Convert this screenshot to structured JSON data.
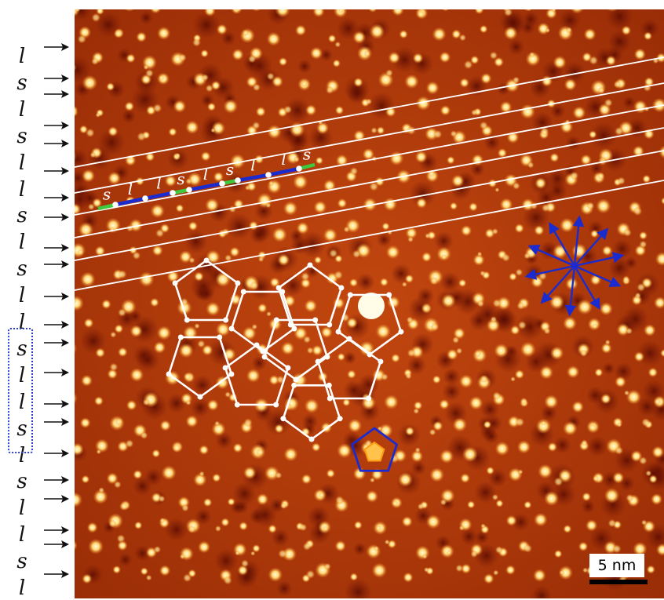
{
  "sequence_column": {
    "letters": [
      "l",
      "s",
      "l",
      "s",
      "l",
      "l",
      "s",
      "l",
      "s",
      "l",
      "l",
      "s",
      "l",
      "l",
      "s",
      "l",
      "s",
      "l",
      "l",
      "s",
      "l"
    ],
    "highlighted_group": [
      "s",
      "l",
      "l",
      "s",
      "l"
    ]
  },
  "image_annotations": {
    "fibonacci_line_labels": [
      "s",
      "l",
      "l",
      "s",
      "l",
      "s",
      "l",
      "l",
      "s"
    ],
    "segment_colors": {
      "s": "#3ec93e",
      "l": "#1a2bd0"
    }
  },
  "scale_bar": {
    "label": "5 nm"
  },
  "colors": {
    "stm_background": "#b53b0a",
    "bright_atom": "#fff1b8",
    "tiling_lines": "#ffffff",
    "star_arrows": "#1a2bd0",
    "highlight_box": "#2a3bd6",
    "pentagon_inner": "#ffb020",
    "pentagon_outer": "#1a2bd0"
  },
  "icons": [
    "arrow-right-icon",
    "tenfold-star-icon",
    "pentagon-icon"
  ]
}
